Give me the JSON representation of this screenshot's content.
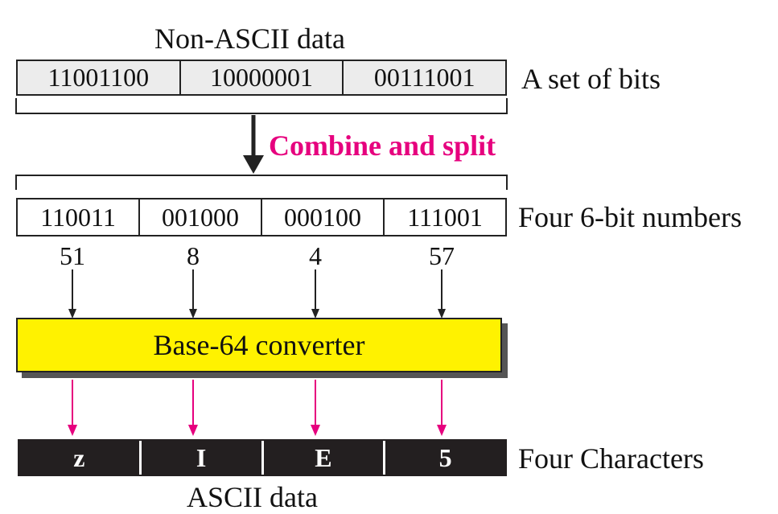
{
  "non_ascii_label": "Non-ASCII data",
  "bits": [
    "11001100",
    "10000001",
    "00111001"
  ],
  "bits_label": "A set of bits",
  "combine_label": "Combine and split",
  "six_bit": [
    "110011",
    "001000",
    "000100",
    "111001"
  ],
  "six_bit_label": "Four 6-bit numbers",
  "values": [
    "51",
    "8",
    "4",
    "57"
  ],
  "converter_label": "Base-64 converter",
  "chars": [
    "z",
    "I",
    "E",
    "5"
  ],
  "chars_label": "Four Characters",
  "ascii_label": "ASCII data",
  "colors": {
    "accent": "#e6007e",
    "converter": "#fff200",
    "char_bg": "#231f20"
  }
}
